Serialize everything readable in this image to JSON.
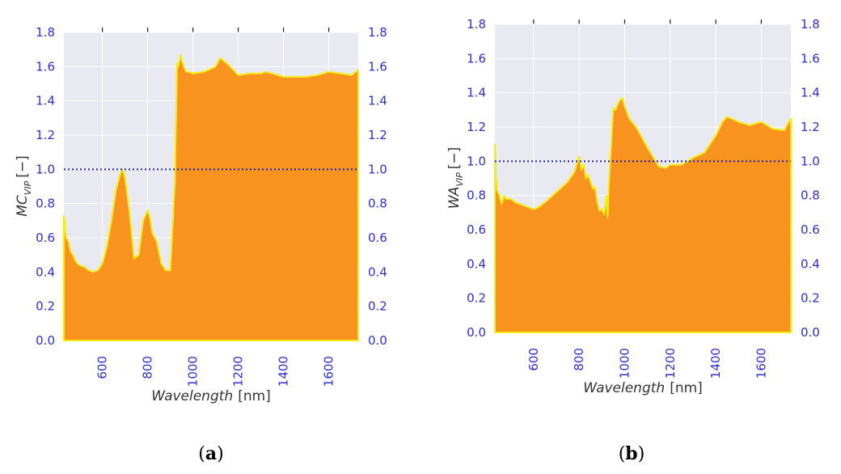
{
  "chart_data": [
    {
      "type": "area",
      "panel": "a",
      "caption_open": "(",
      "caption_letter": "a",
      "caption_close": ")",
      "xlabel_main": "Wavelength",
      "xlabel_unit": "[nm]",
      "ylabel_main": "MC",
      "ylabel_sub": "VIP",
      "ylabel_unit": "[−]",
      "xlim": [
        430,
        1730
      ],
      "ylim": [
        0,
        1.8
      ],
      "xticks": [
        600,
        800,
        1000,
        1200,
        1400,
        1600
      ],
      "yticks": [
        "0.0",
        "0.2",
        "0.4",
        "0.6",
        "0.8",
        "1.0",
        "1.2",
        "1.4",
        "1.6",
        "1.8"
      ],
      "threshold": 1.0,
      "fill_color": "#f7931e",
      "edge_color": "#f5ee12",
      "threshold_color": "#1f1fb8",
      "background_color": "#e9eaf1",
      "x": [
        430,
        440,
        450,
        460,
        470,
        480,
        490,
        500,
        520,
        540,
        560,
        580,
        600,
        620,
        640,
        660,
        680,
        690,
        700,
        720,
        740,
        760,
        780,
        800,
        810,
        820,
        840,
        860,
        880,
        900,
        920,
        930,
        935,
        945,
        950,
        960,
        970,
        980,
        1000,
        1050,
        1100,
        1120,
        1150,
        1200,
        1250,
        1300,
        1320,
        1350,
        1400,
        1450,
        1500,
        1550,
        1600,
        1650,
        1700,
        1730
      ],
      "y": [
        0.73,
        0.6,
        0.58,
        0.52,
        0.5,
        0.47,
        0.45,
        0.44,
        0.43,
        0.41,
        0.4,
        0.41,
        0.45,
        0.55,
        0.7,
        0.88,
        0.98,
        1.0,
        0.95,
        0.75,
        0.48,
        0.5,
        0.7,
        0.76,
        0.72,
        0.63,
        0.58,
        0.45,
        0.41,
        0.41,
        0.92,
        1.62,
        1.6,
        1.67,
        1.64,
        1.6,
        1.57,
        1.57,
        1.56,
        1.57,
        1.6,
        1.65,
        1.62,
        1.55,
        1.56,
        1.56,
        1.57,
        1.56,
        1.54,
        1.54,
        1.54,
        1.55,
        1.57,
        1.56,
        1.55,
        1.58
      ]
    },
    {
      "type": "area",
      "panel": "b",
      "caption_open": "(",
      "caption_letter": "b",
      "caption_close": ")",
      "xlabel_main": "Wavelength",
      "xlabel_unit": "[nm]",
      "ylabel_main": "WA",
      "ylabel_sub": "VIP",
      "ylabel_unit": "[−]",
      "xlim": [
        430,
        1730
      ],
      "ylim": [
        0,
        1.8
      ],
      "xticks": [
        600,
        800,
        1000,
        1200,
        1400,
        1600
      ],
      "yticks": [
        "0.0",
        "0.2",
        "0.4",
        "0.6",
        "0.8",
        "1.0",
        "1.2",
        "1.4",
        "1.6",
        "1.8"
      ],
      "threshold": 1.0,
      "fill_color": "#f7931e",
      "edge_color": "#f5ee12",
      "threshold_color": "#1f1fb8",
      "background_color": "#e9eaf1",
      "x": [
        430,
        435,
        440,
        450,
        460,
        470,
        480,
        500,
        520,
        540,
        560,
        580,
        600,
        620,
        650,
        700,
        750,
        780,
        800,
        810,
        820,
        830,
        840,
        850,
        860,
        870,
        880,
        890,
        900,
        910,
        920,
        925,
        930,
        950,
        960,
        975,
        990,
        1000,
        1020,
        1050,
        1100,
        1150,
        1180,
        1200,
        1250,
        1300,
        1350,
        1400,
        1430,
        1450,
        1500,
        1550,
        1600,
        1650,
        1700,
        1730
      ],
      "y": [
        1.1,
        0.9,
        0.83,
        0.8,
        0.75,
        0.8,
        0.78,
        0.78,
        0.76,
        0.75,
        0.74,
        0.73,
        0.72,
        0.73,
        0.76,
        0.82,
        0.88,
        0.94,
        1.03,
        0.95,
        0.98,
        0.9,
        0.92,
        0.88,
        0.84,
        0.85,
        0.76,
        0.71,
        0.72,
        0.69,
        0.8,
        0.67,
        0.85,
        1.31,
        1.3,
        1.35,
        1.37,
        1.32,
        1.25,
        1.2,
        1.08,
        0.97,
        0.96,
        0.98,
        0.98,
        1.02,
        1.05,
        1.15,
        1.23,
        1.26,
        1.23,
        1.21,
        1.23,
        1.19,
        1.18,
        1.25
      ]
    }
  ]
}
